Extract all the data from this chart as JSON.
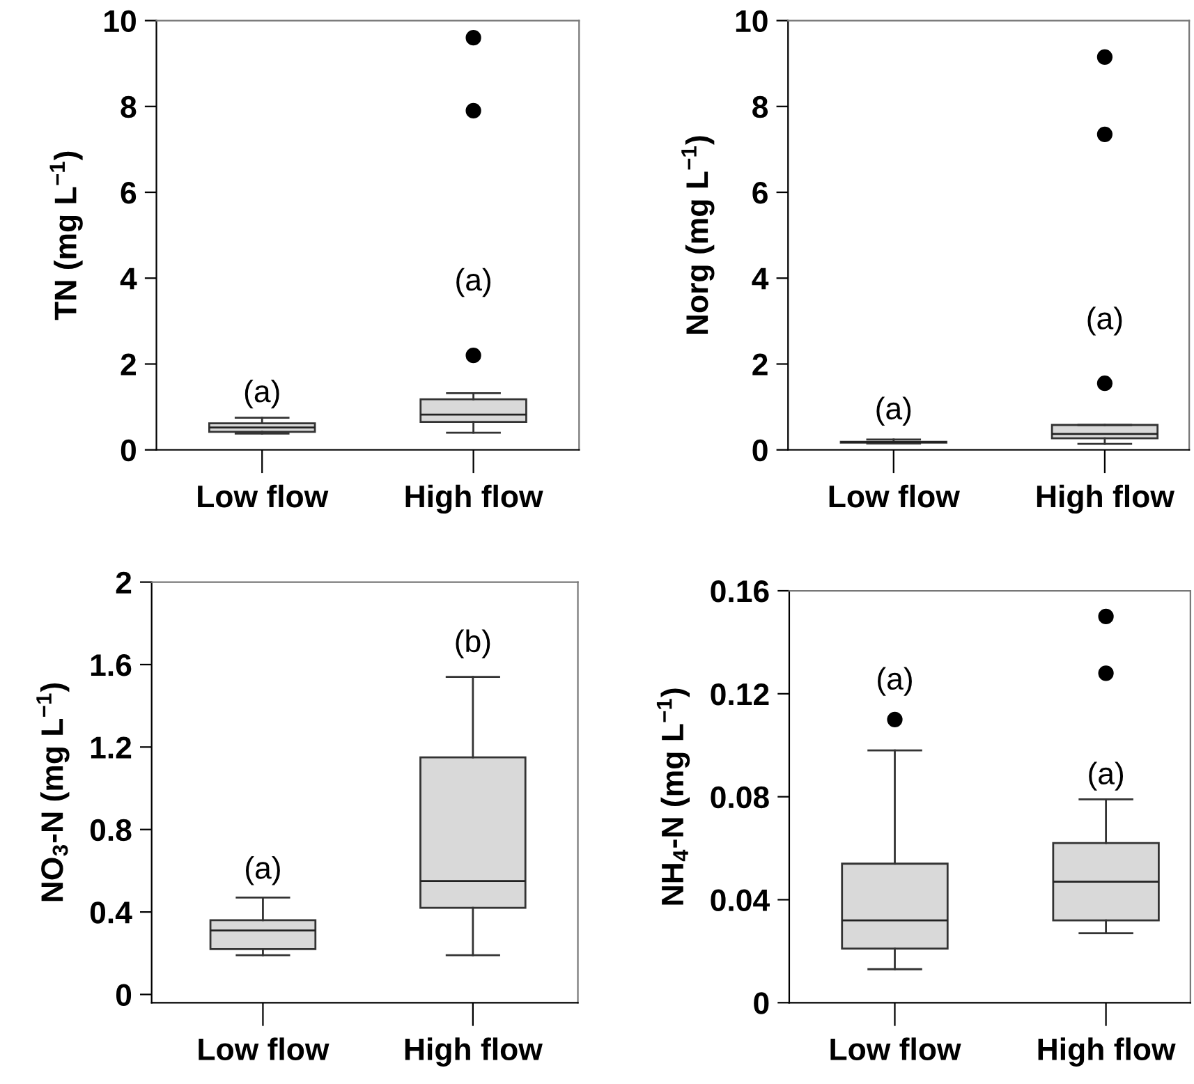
{
  "chart_data": [
    {
      "type": "box",
      "categories": [
        "Low flow",
        "High flow"
      ],
      "ylabel": "TN (mg L$^{−1}$)",
      "ylim": [
        0,
        10
      ],
      "yticks": [
        0,
        2,
        4,
        6,
        8,
        10
      ],
      "marker": "circle",
      "series": [
        {
          "color": "#d9d9d9",
          "boxes": [
            {
              "low": 0.38,
              "q1": 0.42,
              "median": 0.52,
              "q3": 0.62,
              "high": 0.75
            },
            {
              "low": 0.4,
              "q1": 0.65,
              "median": 0.82,
              "q3": 1.18,
              "high": 1.32,
              "outliers": [
                2.2,
                7.9,
                9.6
              ]
            }
          ]
        }
      ],
      "annotations": [
        "(a)",
        "(a)"
      ]
    },
    {
      "type": "box",
      "categories": [
        "Low flow",
        "High flow"
      ],
      "ylabel": "Norg (mg L$^{−1}$)",
      "ylim": [
        0,
        10
      ],
      "yticks": [
        0,
        2,
        4,
        6,
        8,
        10
      ],
      "marker": "circle",
      "series": [
        {
          "color": "#d9d9d9",
          "boxes": [
            {
              "low": 0.15,
              "q1": 0.17,
              "median": 0.18,
              "q3": 0.19,
              "high": 0.24
            },
            {
              "low": 0.14,
              "q1": 0.27,
              "median": 0.37,
              "q3": 0.58,
              "high": 0.58,
              "outliers": [
                1.55,
                7.35,
                9.15
              ]
            }
          ]
        }
      ],
      "annotations": [
        "(a)",
        "(a)"
      ]
    },
    {
      "type": "box",
      "categories": [
        "Low flow",
        "High flow"
      ],
      "ylabel": "NO$_{3}$-N (mg L$^{−1}$)",
      "ylim": [
        -0.04,
        2
      ],
      "yticks": [
        0,
        0.4,
        0.8,
        1.2,
        1.6,
        2
      ],
      "marker": "circle",
      "series": [
        {
          "color": "#d9d9d9",
          "boxes": [
            {
              "low": 0.19,
              "q1": 0.22,
              "median": 0.31,
              "q3": 0.36,
              "high": 0.47
            },
            {
              "low": 0.19,
              "q1": 0.42,
              "median": 0.55,
              "q3": 1.15,
              "high": 1.54
            }
          ]
        }
      ],
      "annotations": [
        "(a)",
        "(b)"
      ]
    },
    {
      "type": "box",
      "categories": [
        "Low flow",
        "High flow"
      ],
      "ylabel": "NH$_{4}$-N (mg L$^{−1}$)",
      "ylim": [
        0,
        0.16
      ],
      "yticks": [
        0,
        0.04,
        0.08,
        0.12,
        0.16
      ],
      "marker": "circle",
      "series": [
        {
          "color": "#d9d9d9",
          "boxes": [
            {
              "low": 0.013,
              "q1": 0.021,
              "median": 0.032,
              "q3": 0.054,
              "high": 0.098,
              "outliers": [
                0.11
              ]
            },
            {
              "low": 0.027,
              "q1": 0.032,
              "median": 0.047,
              "q3": 0.062,
              "high": 0.079,
              "outliers": [
                0.128,
                0.15
              ]
            }
          ]
        }
      ],
      "annotations": [
        "(a)",
        "(a)"
      ]
    }
  ]
}
